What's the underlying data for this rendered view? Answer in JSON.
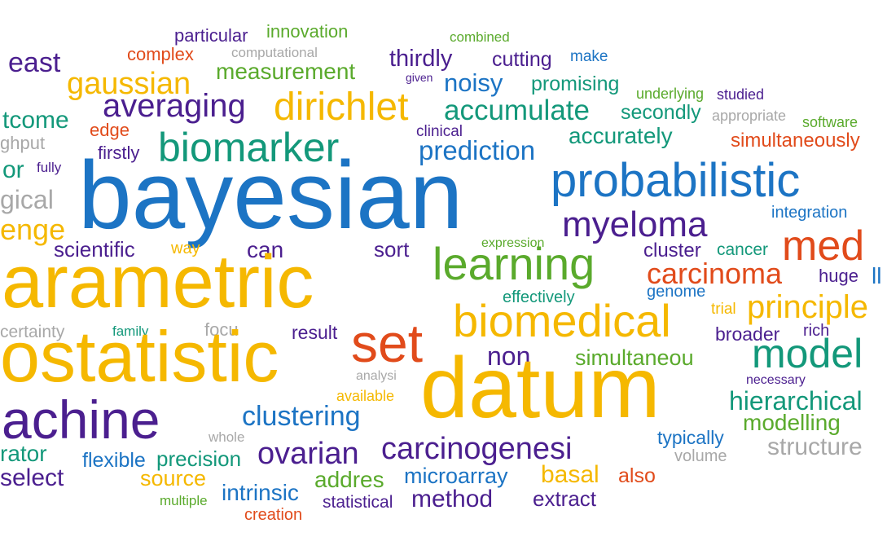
{
  "words": [
    {
      "text": "east",
      "color": "#4b1f8f"
    },
    {
      "text": "particular",
      "color": "#4b1f8f"
    },
    {
      "text": "innovation",
      "color": "#5aaa2c"
    },
    {
      "text": "combined",
      "color": "#5aaa2c"
    },
    {
      "text": "complex",
      "color": "#e14b1b"
    },
    {
      "text": "computational",
      "color": "#a8a8a8"
    },
    {
      "text": "thirdly",
      "color": "#4b1f8f"
    },
    {
      "text": "cutting",
      "color": "#4b1f8f"
    },
    {
      "text": "make",
      "color": "#1c74c4"
    },
    {
      "text": "gaussian",
      "color": "#f5b800"
    },
    {
      "text": "measurement",
      "color": "#5aaa2c"
    },
    {
      "text": "given",
      "color": "#4b1f8f"
    },
    {
      "text": "noisy",
      "color": "#1c74c4"
    },
    {
      "text": "promising",
      "color": "#13987a"
    },
    {
      "text": "underlying",
      "color": "#5aaa2c"
    },
    {
      "text": "studied",
      "color": "#4b1f8f"
    },
    {
      "text": "averaging",
      "color": "#4b1f8f"
    },
    {
      "text": "dirichlet",
      "color": "#f5b800"
    },
    {
      "text": "accumulate",
      "color": "#13987a"
    },
    {
      "text": "secondly",
      "color": "#13987a"
    },
    {
      "text": "appropriate",
      "color": "#a8a8a8"
    },
    {
      "text": "tcome",
      "color": "#13987a"
    },
    {
      "text": "edge",
      "color": "#e14b1b"
    },
    {
      "text": "clinical",
      "color": "#4b1f8f"
    },
    {
      "text": "accurately",
      "color": "#13987a"
    },
    {
      "text": "software",
      "color": "#5aaa2c"
    },
    {
      "text": "ghput",
      "color": "#a8a8a8"
    },
    {
      "text": "biomarker",
      "color": "#13987a"
    },
    {
      "text": "prediction",
      "color": "#1c74c4"
    },
    {
      "text": "simultaneously",
      "color": "#e14b1b"
    },
    {
      "text": "firstly",
      "color": "#4b1f8f"
    },
    {
      "text": "or",
      "color": "#13987a"
    },
    {
      "text": "fully",
      "color": "#4b1f8f"
    },
    {
      "text": "bayesian",
      "color": "#1c74c4"
    },
    {
      "text": "probabilistic",
      "color": "#1c74c4"
    },
    {
      "text": "gical",
      "color": "#a8a8a8"
    },
    {
      "text": "integration",
      "color": "#1c74c4"
    },
    {
      "text": "enge",
      "color": "#f5b800"
    },
    {
      "text": "myeloma",
      "color": "#4b1f8f"
    },
    {
      "text": "scientific",
      "color": "#4b1f8f"
    },
    {
      "text": "way",
      "color": "#f5b800"
    },
    {
      "text": "can",
      "color": "#4b1f8f"
    },
    {
      "text": "sort",
      "color": "#4b1f8f"
    },
    {
      "text": "expression",
      "color": "#5aaa2c"
    },
    {
      "text": "cluster",
      "color": "#4b1f8f"
    },
    {
      "text": "cancer",
      "color": "#13987a"
    },
    {
      "text": "med",
      "color": "#e14b1b"
    },
    {
      "text": "arametric",
      "color": "#f5b800"
    },
    {
      "text": "learning",
      "color": "#5aaa2c"
    },
    {
      "text": "carcinoma",
      "color": "#e14b1b"
    },
    {
      "text": "huge",
      "color": "#4b1f8f"
    },
    {
      "text": "genome",
      "color": "#1c74c4"
    },
    {
      "text": "effectively",
      "color": "#13987a"
    },
    {
      "text": "principle",
      "color": "#f5b800"
    },
    {
      "text": "trial",
      "color": "#f5b800"
    },
    {
      "text": "certainty",
      "color": "#a8a8a8"
    },
    {
      "text": "family",
      "color": "#13987a"
    },
    {
      "text": "focu",
      "color": "#a8a8a8"
    },
    {
      "text": "result",
      "color": "#4b1f8f"
    },
    {
      "text": "biomedical",
      "color": "#f5b800"
    },
    {
      "text": "broader",
      "color": "#4b1f8f"
    },
    {
      "text": "rich",
      "color": "#4b1f8f"
    },
    {
      "text": "ostatistic",
      "color": "#f5b800"
    },
    {
      "text": "set",
      "color": "#e14b1b"
    },
    {
      "text": "non",
      "color": "#4b1f8f"
    },
    {
      "text": "simultaneou",
      "color": "#5aaa2c"
    },
    {
      "text": "model",
      "color": "#13987a"
    },
    {
      "text": "necessary",
      "color": "#4b1f8f"
    },
    {
      "text": "analysi",
      "color": "#a8a8a8"
    },
    {
      "text": "datum",
      "color": "#f5b800"
    },
    {
      "text": "available",
      "color": "#f5b800"
    },
    {
      "text": "hierarchical",
      "color": "#13987a"
    },
    {
      "text": "achine",
      "color": "#4b1f8f"
    },
    {
      "text": "clustering",
      "color": "#1c74c4"
    },
    {
      "text": "modelling",
      "color": "#5aaa2c"
    },
    {
      "text": "whole",
      "color": "#a8a8a8"
    },
    {
      "text": "typically",
      "color": "#1c74c4"
    },
    {
      "text": "rator",
      "color": "#13987a"
    },
    {
      "text": "ovarian",
      "color": "#4b1f8f"
    },
    {
      "text": "carcinogenesi",
      "color": "#4b1f8f"
    },
    {
      "text": "structure",
      "color": "#a8a8a8"
    },
    {
      "text": "flexible",
      "color": "#1c74c4"
    },
    {
      "text": "precision",
      "color": "#13987a"
    },
    {
      "text": "volume",
      "color": "#a8a8a8"
    },
    {
      "text": "select",
      "color": "#4b1f8f"
    },
    {
      "text": "source",
      "color": "#f5b800"
    },
    {
      "text": "addres",
      "color": "#5aaa2c"
    },
    {
      "text": "microarray",
      "color": "#1c74c4"
    },
    {
      "text": "basal",
      "color": "#f5b800"
    },
    {
      "text": "also",
      "color": "#e14b1b"
    },
    {
      "text": "multiple",
      "color": "#5aaa2c"
    },
    {
      "text": "intrinsic",
      "color": "#1c74c4"
    },
    {
      "text": "statistical",
      "color": "#4b1f8f"
    },
    {
      "text": "method",
      "color": "#4b1f8f"
    },
    {
      "text": "extract",
      "color": "#4b1f8f"
    },
    {
      "text": "creation",
      "color": "#e14b1b"
    },
    {
      "text": "ll",
      "color": "#1c74c4"
    }
  ]
}
